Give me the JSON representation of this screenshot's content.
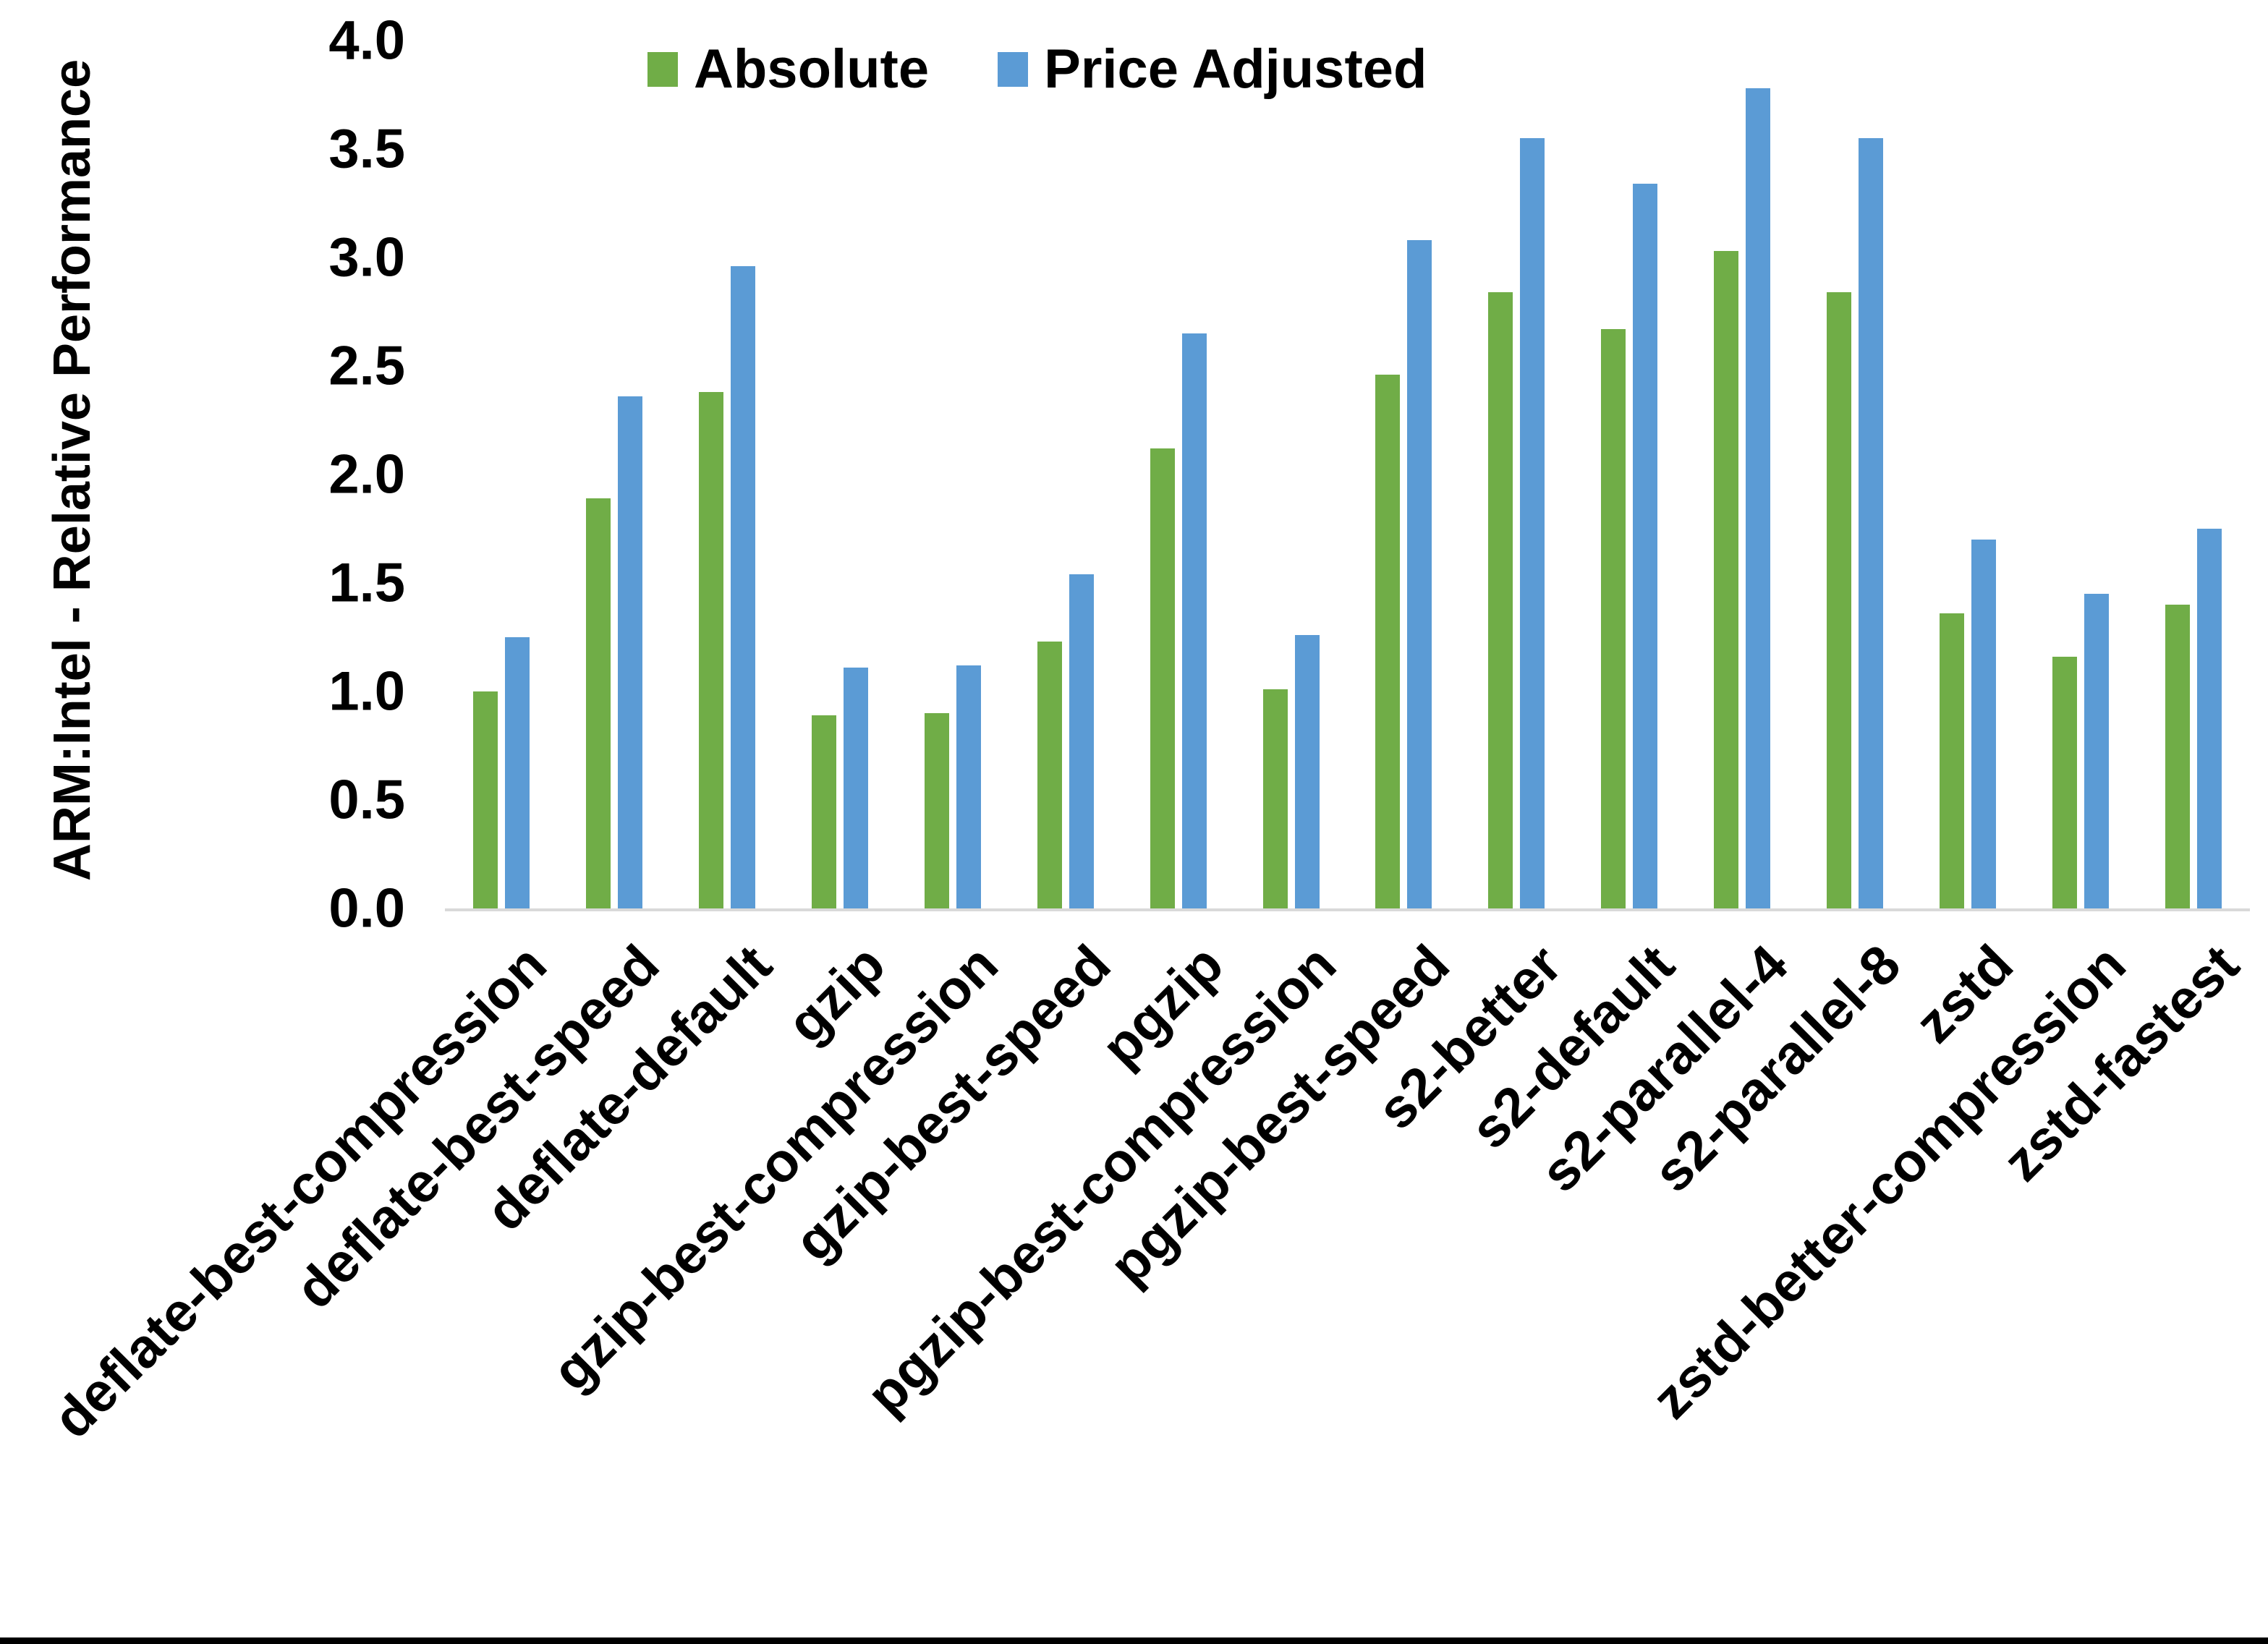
{
  "figure": {
    "background": "#ffffff",
    "bottom_border_color": "#000000",
    "axis_line_color": "#d9d9d9"
  },
  "chart_data": {
    "type": "bar",
    "title": "",
    "xlabel": "",
    "ylabel": "ARM:Intel - Relative Performance",
    "ylim": [
      0.0,
      4.0
    ],
    "ytick_step": 0.5,
    "ytick_labels": [
      "0.0",
      "0.5",
      "1.0",
      "1.5",
      "2.0",
      "2.5",
      "3.0",
      "3.5",
      "4.0"
    ],
    "grid": false,
    "legend_position": "top-center",
    "categories": [
      "deflate-best-compression",
      "deflate-best-speed",
      "deflate-default",
      "gzip",
      "gzip-best-compression",
      "gzip-best-speed",
      "pgzip",
      "pgzip-best-compression",
      "pgzip-best-speed",
      "s2-better",
      "s2-default",
      "s2-parallel-4",
      "s2-parallel-8",
      "zstd",
      "zstd-better-compression",
      "zstd-fastest"
    ],
    "series": [
      {
        "name": "Absolute",
        "color": "#70AD47",
        "values": [
          1.0,
          1.89,
          2.38,
          0.89,
          0.9,
          1.23,
          2.12,
          1.01,
          2.46,
          2.84,
          2.67,
          3.03,
          2.84,
          1.36,
          1.16,
          1.4
        ]
      },
      {
        "name": "Price Adjusted",
        "color": "#5B9BD5",
        "values": [
          1.25,
          2.36,
          2.96,
          1.11,
          1.12,
          1.54,
          2.65,
          1.26,
          3.08,
          3.55,
          3.34,
          3.78,
          3.55,
          1.7,
          1.45,
          1.75
        ]
      }
    ]
  }
}
